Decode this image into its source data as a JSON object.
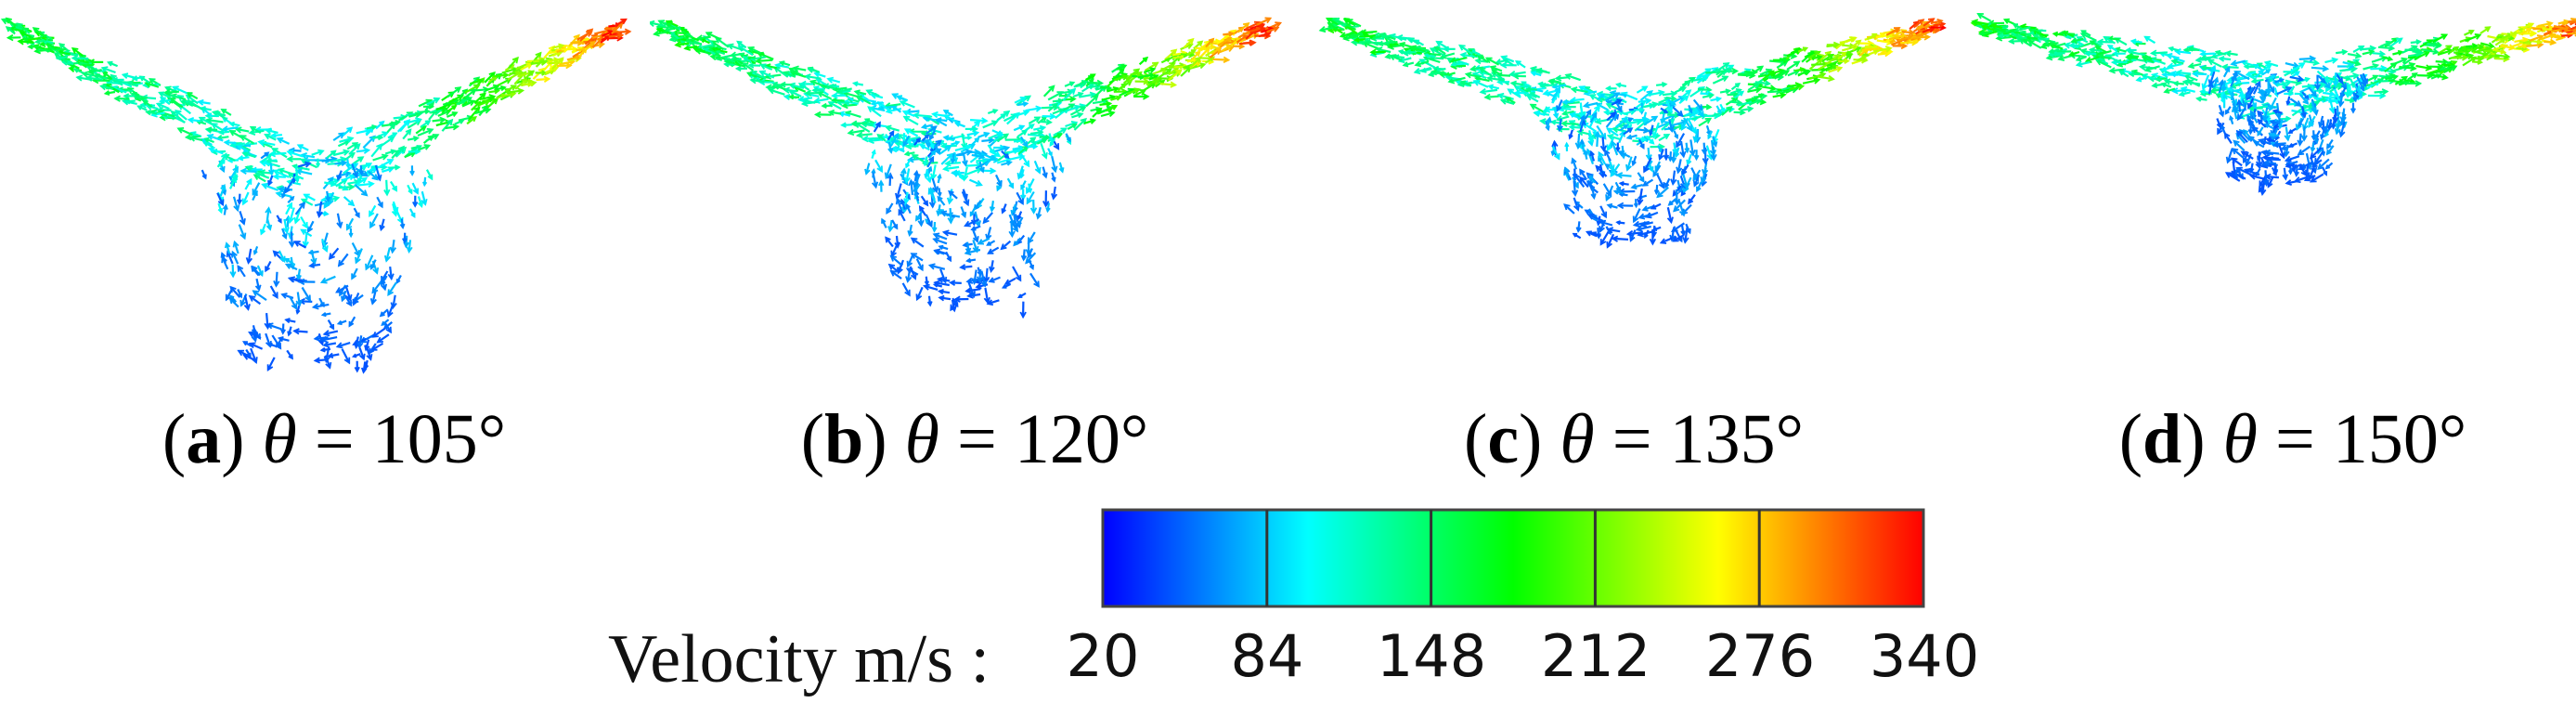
{
  "panels": [
    {
      "letter": "a",
      "var": "θ",
      "eq": " = ",
      "value": "105°",
      "angle": 105
    },
    {
      "letter": "b",
      "var": "θ",
      "eq": " = ",
      "value": "120°",
      "angle": 120
    },
    {
      "letter": "c",
      "var": "θ",
      "eq": " = ",
      "value": "135°",
      "angle": 135
    },
    {
      "letter": "d",
      "var": "θ",
      "eq": " = ",
      "value": "150°",
      "angle": 150
    }
  ],
  "legend": {
    "title": "Velocity m/s :",
    "ticks": [
      "20",
      "84",
      "148",
      "212",
      "276",
      "340"
    ],
    "min": 20,
    "max": 340,
    "colors": [
      "#0000ff",
      "#00ffff",
      "#00ff00",
      "#ffff00",
      "#ff0000"
    ]
  }
}
